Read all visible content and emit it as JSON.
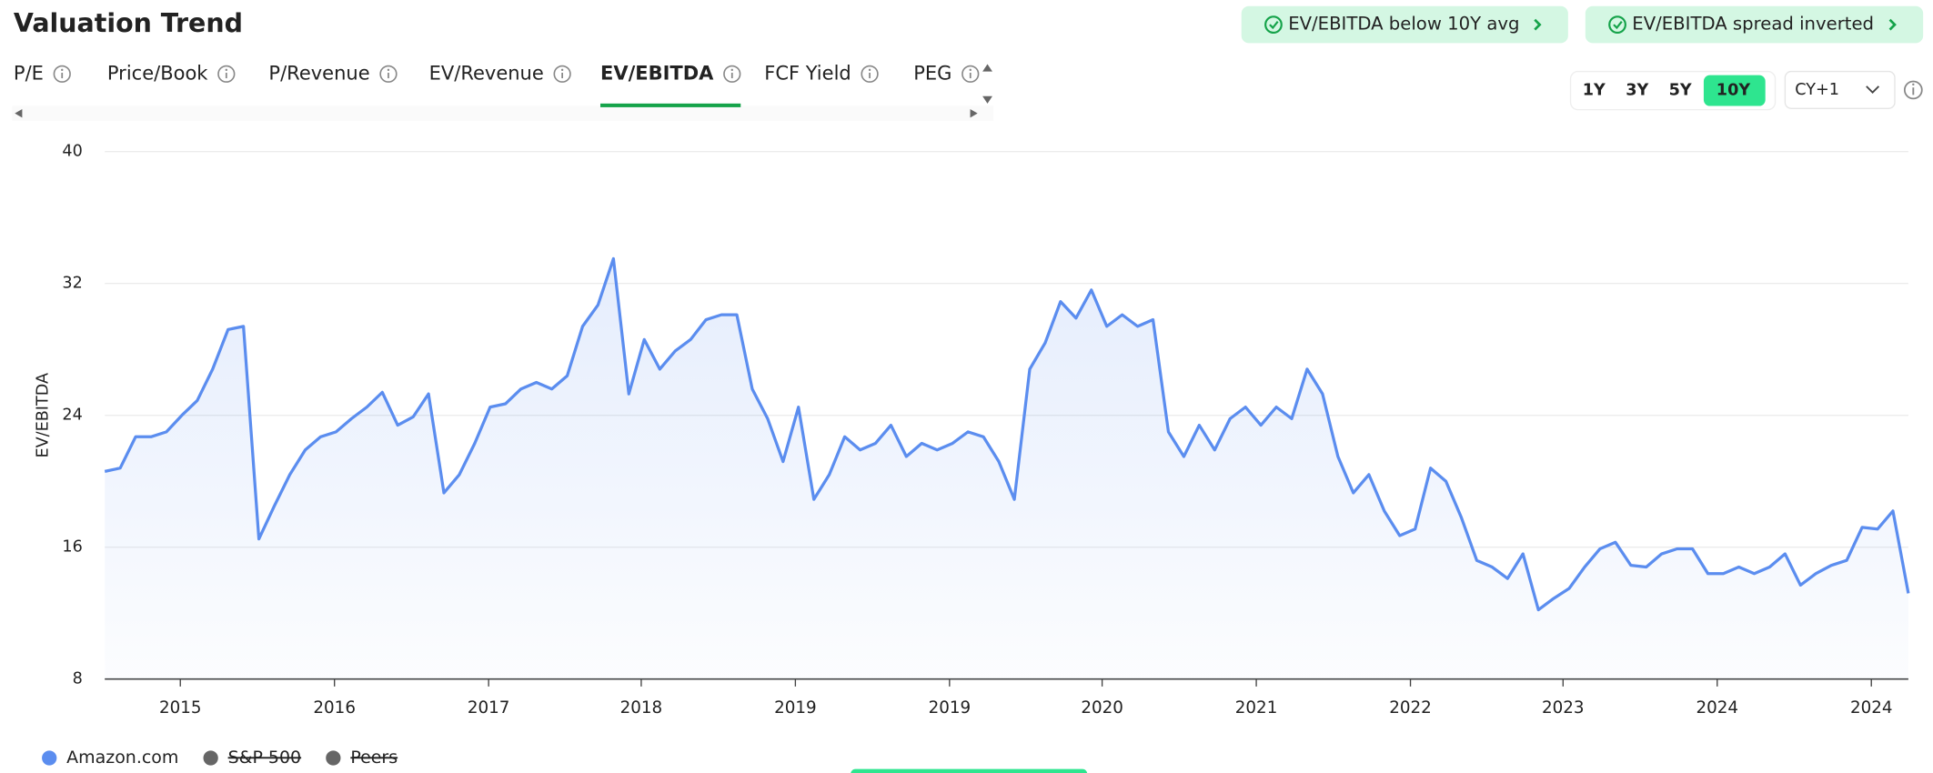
{
  "header": {
    "title": "Valuation Trend"
  },
  "badges": [
    "EV/EBITDA below 10Y avg",
    "EV/EBITDA spread inverted"
  ],
  "tabs": [
    "P/E",
    "Price/Book",
    "P/Revenue",
    "EV/Revenue",
    "EV/EBITDA",
    "FCF Yield",
    "PEG"
  ],
  "active_tab": 4,
  "ranges": [
    "1Y",
    "3Y",
    "5Y",
    "10Y"
  ],
  "active_range": 3,
  "estimate_select": "CY+1",
  "chart_data": {
    "type": "line",
    "ylabel": "EV/EBITDA",
    "ylim": [
      8,
      40
    ],
    "yticks": [
      8,
      16,
      24,
      32,
      40
    ],
    "xlim": [
      0,
      117
    ],
    "xticks": [
      {
        "value": 4.9,
        "label": "2015"
      },
      {
        "value": 14.9,
        "label": "2016"
      },
      {
        "value": 24.9,
        "label": "2017"
      },
      {
        "value": 34.8,
        "label": "2018"
      },
      {
        "value": 44.8,
        "label": "2019"
      },
      {
        "value": 54.8,
        "label": "2019"
      },
      {
        "value": 64.7,
        "label": "2020"
      },
      {
        "value": 74.7,
        "label": "2021"
      },
      {
        "value": 84.7,
        "label": "2022"
      },
      {
        "value": 94.6,
        "label": "2023"
      },
      {
        "value": 104.6,
        "label": "2024"
      },
      {
        "value": 114.6,
        "label": "2024"
      }
    ],
    "grid": true,
    "series": [
      {
        "name": "Amazon.com",
        "color": "#5b8def",
        "values": [
          20.6,
          20.8,
          22.7,
          22.7,
          23.0,
          24.0,
          24.9,
          26.8,
          29.2,
          29.4,
          16.5,
          18.5,
          20.4,
          21.9,
          22.7,
          23.0,
          23.8,
          24.5,
          25.4,
          23.4,
          23.9,
          25.3,
          19.3,
          20.4,
          22.3,
          24.5,
          24.7,
          25.6,
          26.0,
          25.6,
          26.4,
          29.4,
          30.7,
          33.5,
          25.3,
          28.6,
          26.8,
          27.9,
          28.6,
          29.8,
          30.1,
          30.1,
          25.6,
          23.8,
          21.2,
          24.5,
          18.9,
          20.4,
          22.7,
          21.9,
          22.3,
          23.4,
          21.5,
          22.3,
          21.9,
          22.3,
          23.0,
          22.7,
          21.2,
          18.9,
          26.8,
          28.4,
          30.9,
          29.9,
          31.6,
          29.4,
          30.1,
          29.4,
          29.8,
          23.0,
          21.5,
          23.4,
          21.9,
          23.8,
          24.5,
          23.4,
          24.5,
          23.8,
          26.8,
          25.3,
          21.5,
          19.3,
          20.4,
          18.2,
          16.7,
          17.1,
          20.8,
          20.0,
          17.8,
          15.2,
          14.8,
          14.1,
          15.6,
          12.2,
          12.9,
          13.5,
          14.8,
          15.9,
          16.3,
          14.9,
          14.8,
          15.6,
          15.9,
          15.9,
          14.4,
          14.4,
          14.8,
          14.4,
          14.8,
          15.6,
          13.7,
          14.4,
          14.9,
          15.2,
          17.2,
          17.1,
          18.2,
          13.2
        ]
      }
    ],
    "hidden_series": [
      {
        "name": "S&P 500",
        "color": "#666666"
      },
      {
        "name": "Peers",
        "color": "#666666"
      }
    ]
  }
}
